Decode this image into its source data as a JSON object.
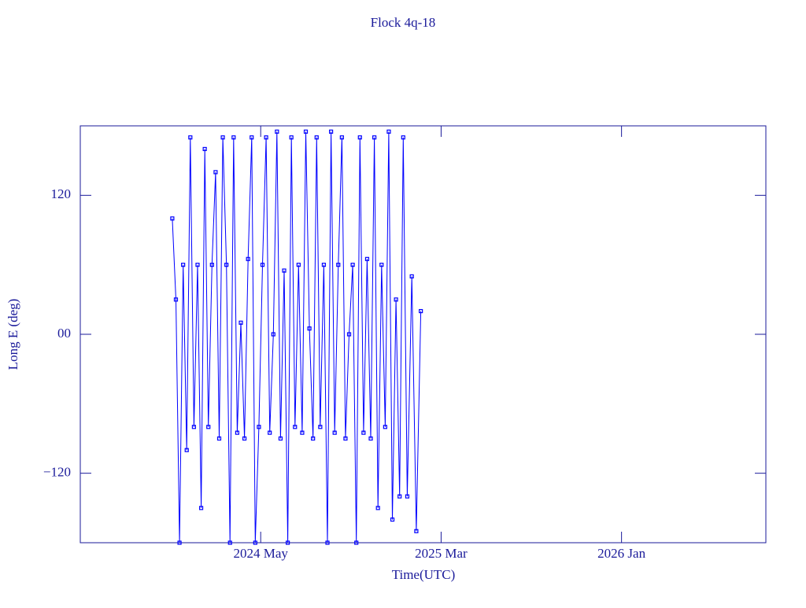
{
  "chart_data": {
    "type": "line",
    "title": "Flock 4q-18",
    "xlabel": "Time(UTC)",
    "ylabel": "Long E (deg)",
    "color": "#0000ff",
    "axis_color": "#1a1a9a",
    "x": [
      "2023-12",
      "2023-12",
      "2023-12",
      "2023-12",
      "2023-12",
      "2024-01",
      "2024-01",
      "2024-01",
      "2024-01",
      "2024-01",
      "2024-02",
      "2024-02",
      "2024-02",
      "2024-02",
      "2024-02",
      "2024-03",
      "2024-03",
      "2024-03",
      "2024-03",
      "2024-03",
      "2024-04",
      "2024-04",
      "2024-04",
      "2024-04",
      "2024-04",
      "2024-05",
      "2024-05",
      "2024-05",
      "2024-05",
      "2024-05",
      "2024-06",
      "2024-06",
      "2024-06",
      "2024-06",
      "2024-06",
      "2024-07",
      "2024-07",
      "2024-07",
      "2024-07",
      "2024-07",
      "2024-08",
      "2024-08",
      "2024-08",
      "2024-08",
      "2024-08",
      "2024-09",
      "2024-09",
      "2024-09",
      "2024-09",
      "2024-09",
      "2024-10",
      "2024-10",
      "2024-10",
      "2024-10",
      "2024-10",
      "2024-11",
      "2024-11",
      "2024-11",
      "2024-11",
      "2024-11",
      "2024-12",
      "2024-12",
      "2024-12",
      "2024-12",
      "2024-12",
      "2025-01",
      "2025-01",
      "2025-01",
      "2025-01"
    ],
    "values": [
      100,
      30,
      -180,
      60,
      -100,
      170,
      -80,
      60,
      -150,
      160,
      -80,
      60,
      140,
      -90,
      170,
      60,
      -180,
      170,
      -85,
      10,
      -90,
      65,
      170,
      -180,
      -80,
      60,
      170,
      -85,
      0,
      175,
      -90,
      55,
      -180,
      170,
      -80,
      60,
      -85,
      175,
      5,
      -90,
      170,
      -80,
      60,
      -180,
      175,
      -85,
      60,
      170,
      -90,
      0,
      60,
      -180,
      170,
      -85,
      65,
      -90,
      170,
      -150,
      60,
      -80,
      175,
      -160,
      30,
      -140,
      170,
      -140,
      50,
      -170,
      20
    ],
    "xlim": [
      "2023-07",
      "2026-09"
    ],
    "xticks": [
      {
        "value": "2024-05",
        "label": "2024 May"
      },
      {
        "value": "2025-03",
        "label": "2025 Mar"
      },
      {
        "value": "2026-01",
        "label": "2026 Jan"
      }
    ],
    "ylim": [
      -180,
      180
    ],
    "yticks": [
      {
        "value": -120,
        "label": "−120"
      },
      {
        "value": 0,
        "label": "00"
      },
      120
    ]
  }
}
